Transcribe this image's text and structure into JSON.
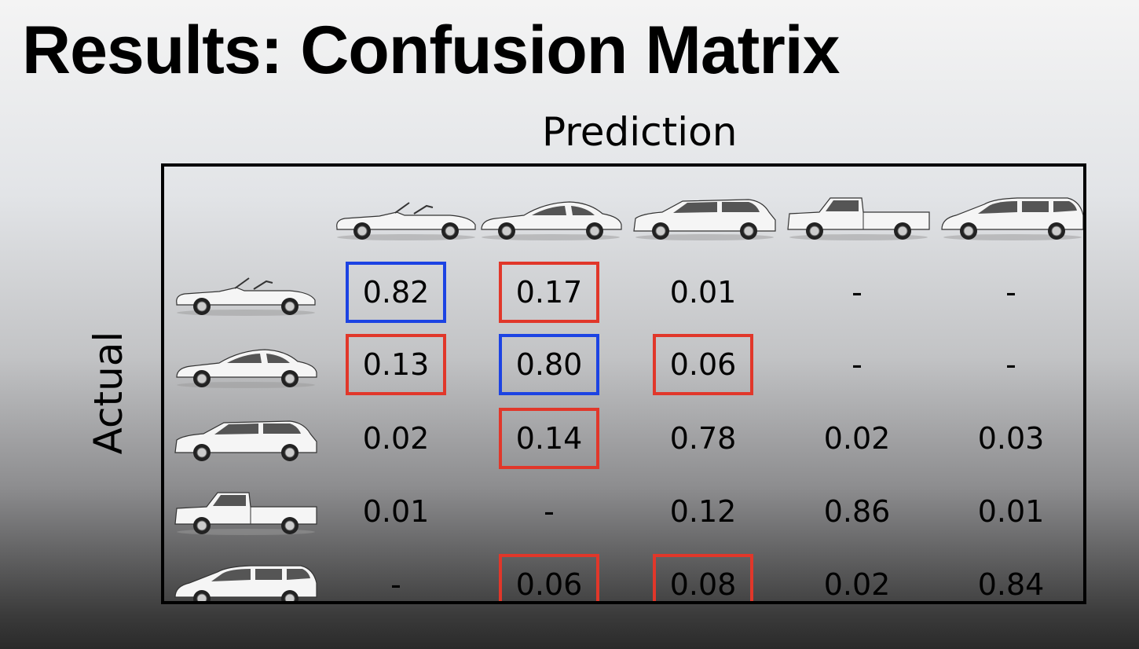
{
  "title": "Results: Confusion Matrix",
  "axis": {
    "prediction": "Prediction",
    "actual": "Actual"
  },
  "colors": {
    "diagonal_highlight": "#1c43e3",
    "confusion_highlight": "#e1372a",
    "cell_text": "#000000",
    "car_body": "#f5f5f5"
  },
  "classes": [
    {
      "icon": "convertible-car-icon"
    },
    {
      "icon": "sedan-car-icon"
    },
    {
      "icon": "suv-car-icon"
    },
    {
      "icon": "pickup-truck-icon"
    },
    {
      "icon": "minivan-car-icon"
    }
  ],
  "matrix": {
    "rows": [
      [
        {
          "v": "0.82",
          "hl": "blue"
        },
        {
          "v": "0.17",
          "hl": "red"
        },
        {
          "v": "0.01",
          "hl": ""
        },
        {
          "v": "-",
          "hl": ""
        },
        {
          "v": "-",
          "hl": ""
        }
      ],
      [
        {
          "v": "0.13",
          "hl": "red"
        },
        {
          "v": "0.80",
          "hl": "blue"
        },
        {
          "v": "0.06",
          "hl": "red"
        },
        {
          "v": "-",
          "hl": ""
        },
        {
          "v": "-",
          "hl": ""
        }
      ],
      [
        {
          "v": "0.02",
          "hl": ""
        },
        {
          "v": "0.14",
          "hl": "red"
        },
        {
          "v": "0.78",
          "hl": ""
        },
        {
          "v": "0.02",
          "hl": ""
        },
        {
          "v": "0.03",
          "hl": ""
        }
      ],
      [
        {
          "v": "0.01",
          "hl": ""
        },
        {
          "v": "-",
          "hl": ""
        },
        {
          "v": "0.12",
          "hl": ""
        },
        {
          "v": "0.86",
          "hl": ""
        },
        {
          "v": "0.01",
          "hl": ""
        }
      ],
      [
        {
          "v": "-",
          "hl": ""
        },
        {
          "v": "0.06",
          "hl": "red"
        },
        {
          "v": "0.08",
          "hl": "red"
        },
        {
          "v": "0.02",
          "hl": ""
        },
        {
          "v": "0.84",
          "hl": ""
        }
      ]
    ]
  }
}
